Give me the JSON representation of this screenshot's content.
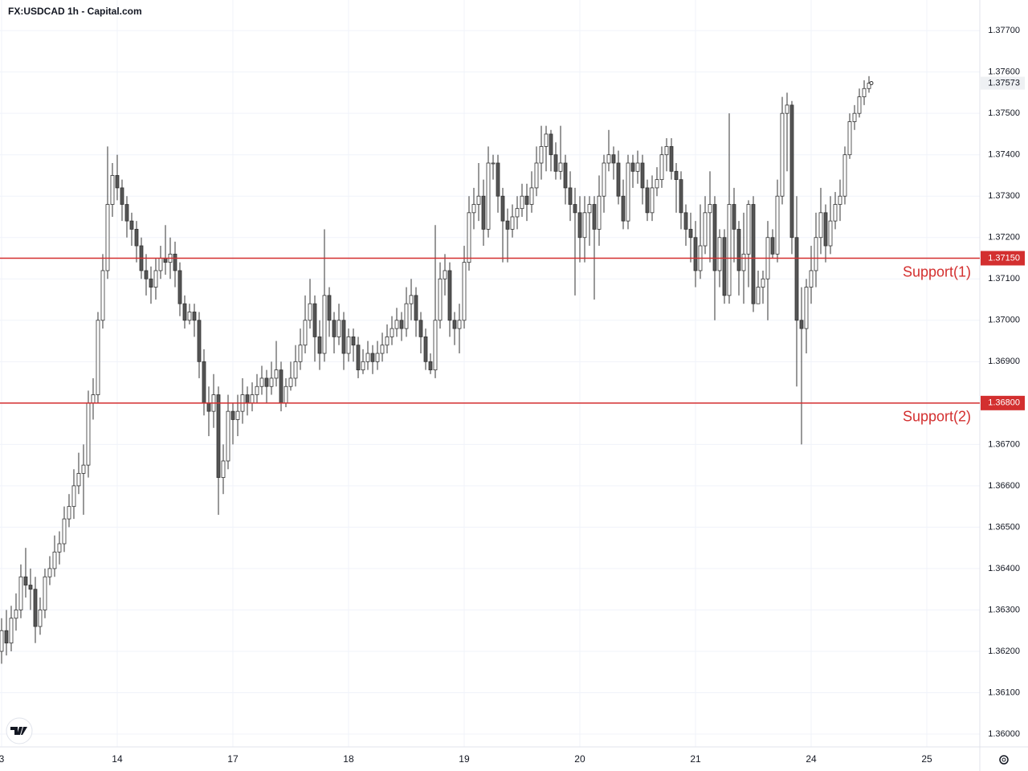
{
  "chart_data": {
    "type": "candlestick",
    "title": "FX:USDCAD 1h - Capital.com",
    "ohlc": [
      [
        1.362,
        1.3628,
        1.3617,
        1.3625
      ],
      [
        1.3625,
        1.363,
        1.3619,
        1.3622
      ],
      [
        1.3622,
        1.3631,
        1.362,
        1.3628
      ],
      [
        1.3628,
        1.3634,
        1.3625,
        1.363
      ],
      [
        1.363,
        1.3641,
        1.3628,
        1.3638
      ],
      [
        1.3638,
        1.3645,
        1.3633,
        1.3636
      ],
      [
        1.3636,
        1.364,
        1.363,
        1.3635
      ],
      [
        1.3635,
        1.3638,
        1.3622,
        1.3626
      ],
      [
        1.3626,
        1.3633,
        1.3624,
        1.363
      ],
      [
        1.363,
        1.364,
        1.3628,
        1.3638
      ],
      [
        1.3638,
        1.3643,
        1.3636,
        1.364
      ],
      [
        1.364,
        1.3648,
        1.3638,
        1.3644
      ],
      [
        1.3644,
        1.3649,
        1.3641,
        1.3646
      ],
      [
        1.3646,
        1.3655,
        1.3644,
        1.3652
      ],
      [
        1.3652,
        1.3658,
        1.365,
        1.3655
      ],
      [
        1.3655,
        1.3664,
        1.3652,
        1.366
      ],
      [
        1.366,
        1.3668,
        1.3658,
        1.3663
      ],
      [
        1.3663,
        1.367,
        1.3653,
        1.3665
      ],
      [
        1.3665,
        1.3683,
        1.3662,
        1.368
      ],
      [
        1.368,
        1.3686,
        1.3676,
        1.3682
      ],
      [
        1.3682,
        1.3702,
        1.368,
        1.37
      ],
      [
        1.37,
        1.3716,
        1.3698,
        1.3712
      ],
      [
        1.3712,
        1.3742,
        1.371,
        1.3728
      ],
      [
        1.3728,
        1.3738,
        1.3725,
        1.3735
      ],
      [
        1.3735,
        1.374,
        1.3729,
        1.3732
      ],
      [
        1.3732,
        1.3734,
        1.3724,
        1.3728
      ],
      [
        1.3728,
        1.373,
        1.372,
        1.3724
      ],
      [
        1.3724,
        1.3726,
        1.3718,
        1.3722
      ],
      [
        1.3722,
        1.3724,
        1.3714,
        1.3718
      ],
      [
        1.3718,
        1.372,
        1.371,
        1.3712
      ],
      [
        1.3712,
        1.3716,
        1.3706,
        1.371
      ],
      [
        1.371,
        1.3713,
        1.3704,
        1.3708
      ],
      [
        1.3708,
        1.3715,
        1.3705,
        1.3712
      ],
      [
        1.3712,
        1.3718,
        1.371,
        1.3715
      ],
      [
        1.3715,
        1.3723,
        1.3711,
        1.3714
      ],
      [
        1.3714,
        1.372,
        1.371,
        1.3716
      ],
      [
        1.3716,
        1.3719,
        1.3708,
        1.3712
      ],
      [
        1.3712,
        1.3714,
        1.3701,
        1.3704
      ],
      [
        1.3704,
        1.3706,
        1.3698,
        1.37
      ],
      [
        1.37,
        1.3704,
        1.3699,
        1.3702
      ],
      [
        1.3702,
        1.3704,
        1.3696,
        1.37
      ],
      [
        1.37,
        1.3702,
        1.3686,
        1.369
      ],
      [
        1.369,
        1.3693,
        1.3677,
        1.368
      ],
      [
        1.368,
        1.3684,
        1.3672,
        1.3678
      ],
      [
        1.3678,
        1.3687,
        1.3674,
        1.3682
      ],
      [
        1.3682,
        1.3684,
        1.3653,
        1.3662
      ],
      [
        1.3662,
        1.367,
        1.3658,
        1.3666
      ],
      [
        1.3666,
        1.3682,
        1.3664,
        1.3678
      ],
      [
        1.3678,
        1.368,
        1.367,
        1.3676
      ],
      [
        1.3676,
        1.3682,
        1.3672,
        1.3678
      ],
      [
        1.3678,
        1.3686,
        1.3675,
        1.3682
      ],
      [
        1.3682,
        1.3684,
        1.3677,
        1.368
      ],
      [
        1.368,
        1.3685,
        1.3678,
        1.3682
      ],
      [
        1.3682,
        1.3687,
        1.368,
        1.3684
      ],
      [
        1.3684,
        1.3689,
        1.3682,
        1.3686
      ],
      [
        1.3686,
        1.3688,
        1.368,
        1.3684
      ],
      [
        1.3684,
        1.369,
        1.3682,
        1.3686
      ],
      [
        1.3686,
        1.3695,
        1.3684,
        1.3688
      ],
      [
        1.3688,
        1.369,
        1.3678,
        1.368
      ],
      [
        1.368,
        1.3686,
        1.3679,
        1.3684
      ],
      [
        1.3684,
        1.369,
        1.3683,
        1.3686
      ],
      [
        1.3686,
        1.3694,
        1.3684,
        1.369
      ],
      [
        1.369,
        1.3698,
        1.3688,
        1.3694
      ],
      [
        1.3694,
        1.3706,
        1.3692,
        1.37
      ],
      [
        1.37,
        1.371,
        1.3698,
        1.3704
      ],
      [
        1.3704,
        1.3706,
        1.369,
        1.3696
      ],
      [
        1.3696,
        1.37,
        1.3688,
        1.3692
      ],
      [
        1.3692,
        1.3722,
        1.369,
        1.3706
      ],
      [
        1.3706,
        1.3708,
        1.3696,
        1.37
      ],
      [
        1.37,
        1.3702,
        1.3692,
        1.3696
      ],
      [
        1.3696,
        1.3704,
        1.3694,
        1.37
      ],
      [
        1.37,
        1.3702,
        1.3688,
        1.3692
      ],
      [
        1.3692,
        1.3698,
        1.369,
        1.3696
      ],
      [
        1.3696,
        1.3698,
        1.369,
        1.3694
      ],
      [
        1.3694,
        1.3696,
        1.3686,
        1.3688
      ],
      [
        1.3688,
        1.3693,
        1.3687,
        1.369
      ],
      [
        1.369,
        1.3695,
        1.3688,
        1.3692
      ],
      [
        1.3692,
        1.3694,
        1.3687,
        1.369
      ],
      [
        1.369,
        1.3695,
        1.3688,
        1.3692
      ],
      [
        1.3692,
        1.3697,
        1.369,
        1.3694
      ],
      [
        1.3694,
        1.3699,
        1.3692,
        1.3696
      ],
      [
        1.3696,
        1.3701,
        1.3694,
        1.3698
      ],
      [
        1.3698,
        1.3703,
        1.3696,
        1.37
      ],
      [
        1.37,
        1.3702,
        1.3695,
        1.3698
      ],
      [
        1.3698,
        1.3708,
        1.3696,
        1.3704
      ],
      [
        1.3704,
        1.371,
        1.37,
        1.3706
      ],
      [
        1.3706,
        1.3708,
        1.3696,
        1.37
      ],
      [
        1.37,
        1.3702,
        1.3692,
        1.3696
      ],
      [
        1.3696,
        1.3698,
        1.3688,
        1.369
      ],
      [
        1.369,
        1.3692,
        1.3687,
        1.3688
      ],
      [
        1.3688,
        1.3723,
        1.3686,
        1.37
      ],
      [
        1.37,
        1.3714,
        1.3698,
        1.371
      ],
      [
        1.371,
        1.3716,
        1.3706,
        1.3712
      ],
      [
        1.3712,
        1.3714,
        1.3696,
        1.37
      ],
      [
        1.37,
        1.3702,
        1.3694,
        1.3698
      ],
      [
        1.3698,
        1.3704,
        1.3692,
        1.37
      ],
      [
        1.37,
        1.3718,
        1.3698,
        1.3714
      ],
      [
        1.3714,
        1.373,
        1.3712,
        1.3726
      ],
      [
        1.3726,
        1.3732,
        1.3722,
        1.3728
      ],
      [
        1.3728,
        1.3738,
        1.3724,
        1.373
      ],
      [
        1.373,
        1.3734,
        1.3718,
        1.3722
      ],
      [
        1.3722,
        1.3742,
        1.372,
        1.3738
      ],
      [
        1.3738,
        1.374,
        1.3734,
        1.3738
      ],
      [
        1.3738,
        1.374,
        1.3726,
        1.373
      ],
      [
        1.373,
        1.3732,
        1.3714,
        1.3724
      ],
      [
        1.3724,
        1.3727,
        1.3714,
        1.3722
      ],
      [
        1.3722,
        1.3728,
        1.372,
        1.3725
      ],
      [
        1.3725,
        1.373,
        1.3722,
        1.3727
      ],
      [
        1.3727,
        1.3733,
        1.3725,
        1.373
      ],
      [
        1.373,
        1.3733,
        1.3724,
        1.3728
      ],
      [
        1.3728,
        1.3736,
        1.3726,
        1.3732
      ],
      [
        1.3732,
        1.3742,
        1.373,
        1.3738
      ],
      [
        1.3738,
        1.3747,
        1.3734,
        1.3742
      ],
      [
        1.3742,
        1.3747,
        1.3736,
        1.3745
      ],
      [
        1.3745,
        1.3746,
        1.3736,
        1.374
      ],
      [
        1.374,
        1.3743,
        1.3734,
        1.3736
      ],
      [
        1.3736,
        1.3747,
        1.3734,
        1.3738
      ],
      [
        1.3738,
        1.374,
        1.3728,
        1.3732
      ],
      [
        1.3732,
        1.3736,
        1.3724,
        1.3728
      ],
      [
        1.3728,
        1.3732,
        1.3706,
        1.3726
      ],
      [
        1.3726,
        1.373,
        1.3714,
        1.372
      ],
      [
        1.372,
        1.373,
        1.3714,
        1.3726
      ],
      [
        1.3726,
        1.373,
        1.3718,
        1.3728
      ],
      [
        1.3728,
        1.373,
        1.3705,
        1.3722
      ],
      [
        1.3722,
        1.3735,
        1.3718,
        1.373
      ],
      [
        1.373,
        1.374,
        1.3726,
        1.3738
      ],
      [
        1.3738,
        1.3746,
        1.3736,
        1.374
      ],
      [
        1.374,
        1.3742,
        1.3734,
        1.3738
      ],
      [
        1.3738,
        1.3741,
        1.3728,
        1.373
      ],
      [
        1.373,
        1.3734,
        1.3722,
        1.3724
      ],
      [
        1.3724,
        1.374,
        1.3722,
        1.3738
      ],
      [
        1.3738,
        1.374,
        1.3732,
        1.3736
      ],
      [
        1.3736,
        1.3741,
        1.3733,
        1.3738
      ],
      [
        1.3738,
        1.374,
        1.3728,
        1.3732
      ],
      [
        1.3732,
        1.3734,
        1.3724,
        1.3726
      ],
      [
        1.3726,
        1.3735,
        1.3724,
        1.3732
      ],
      [
        1.3732,
        1.3737,
        1.373,
        1.3734
      ],
      [
        1.3734,
        1.3742,
        1.3732,
        1.374
      ],
      [
        1.374,
        1.3744,
        1.3736,
        1.3742
      ],
      [
        1.3742,
        1.3744,
        1.3734,
        1.3736
      ],
      [
        1.3736,
        1.3738,
        1.3726,
        1.3734
      ],
      [
        1.3734,
        1.3736,
        1.3722,
        1.3726
      ],
      [
        1.3726,
        1.3728,
        1.3718,
        1.3722
      ],
      [
        1.3722,
        1.3726,
        1.3714,
        1.372
      ],
      [
        1.372,
        1.3724,
        1.3708,
        1.3712
      ],
      [
        1.3712,
        1.3728,
        1.371,
        1.3718
      ],
      [
        1.3718,
        1.373,
        1.3716,
        1.3726
      ],
      [
        1.3726,
        1.3736,
        1.3714,
        1.3728
      ],
      [
        1.3728,
        1.373,
        1.37,
        1.3712
      ],
      [
        1.3712,
        1.3722,
        1.3708,
        1.372
      ],
      [
        1.372,
        1.3722,
        1.3704,
        1.3706
      ],
      [
        1.3706,
        1.375,
        1.3704,
        1.3728
      ],
      [
        1.3728,
        1.3732,
        1.3714,
        1.3722
      ],
      [
        1.3722,
        1.3724,
        1.3706,
        1.3712
      ],
      [
        1.3712,
        1.3726,
        1.3704,
        1.3716
      ],
      [
        1.3716,
        1.3729,
        1.3708,
        1.3728
      ],
      [
        1.3728,
        1.373,
        1.3702,
        1.3704
      ],
      [
        1.3704,
        1.3712,
        1.3704,
        1.3708
      ],
      [
        1.3708,
        1.3712,
        1.3704,
        1.371
      ],
      [
        1.371,
        1.3724,
        1.37,
        1.372
      ],
      [
        1.372,
        1.3722,
        1.3715,
        1.3716
      ],
      [
        1.3716,
        1.3734,
        1.3714,
        1.373
      ],
      [
        1.373,
        1.3754,
        1.3728,
        1.375
      ],
      [
        1.375,
        1.3755,
        1.3736,
        1.3752
      ],
      [
        1.3752,
        1.3753,
        1.3716,
        1.372
      ],
      [
        1.372,
        1.373,
        1.3684,
        1.37
      ],
      [
        1.37,
        1.3708,
        1.367,
        1.3698
      ],
      [
        1.3698,
        1.371,
        1.3692,
        1.3708
      ],
      [
        1.3708,
        1.3718,
        1.3704,
        1.3712
      ],
      [
        1.3712,
        1.3726,
        1.3708,
        1.372
      ],
      [
        1.372,
        1.3732,
        1.3716,
        1.3726
      ],
      [
        1.3726,
        1.3728,
        1.3714,
        1.3718
      ],
      [
        1.3718,
        1.373,
        1.3716,
        1.3724
      ],
      [
        1.3724,
        1.3731,
        1.3722,
        1.3728
      ],
      [
        1.3728,
        1.3734,
        1.3724,
        1.373
      ],
      [
        1.373,
        1.3742,
        1.3728,
        1.374
      ],
      [
        1.374,
        1.375,
        1.3739,
        1.3748
      ],
      [
        1.3748,
        1.3752,
        1.3746,
        1.375
      ],
      [
        1.375,
        1.3756,
        1.3749,
        1.3754
      ],
      [
        1.3754,
        1.3758,
        1.3752,
        1.3756
      ],
      [
        1.3756,
        1.3759,
        1.3755,
        1.37573
      ]
    ],
    "last_price": 1.37573,
    "levels": [
      {
        "name": "Support(1)",
        "value": 1.3715,
        "label": "1.37150",
        "color": "#d32f2f"
      },
      {
        "name": "Support(2)",
        "value": 1.368,
        "label": "1.36800",
        "color": "#d32f2f"
      }
    ],
    "xlim": [
      -0.33,
      203
    ],
    "xticks": [
      {
        "value": 0,
        "label": "3"
      },
      {
        "value": 24,
        "label": "14"
      },
      {
        "value": 48,
        "label": "17"
      },
      {
        "value": 72,
        "label": "18"
      },
      {
        "value": 96,
        "label": "19"
      },
      {
        "value": 120,
        "label": "20"
      },
      {
        "value": 144,
        "label": "21"
      },
      {
        "value": 168,
        "label": "24"
      },
      {
        "value": 192,
        "label": "25"
      }
    ],
    "ylim": [
      1.35969,
      1.37774
    ],
    "yticks": [
      {
        "value": 1.36,
        "label": "1.36000"
      },
      {
        "value": 1.361,
        "label": "1.36100"
      },
      {
        "value": 1.362,
        "label": "1.36200"
      },
      {
        "value": 1.363,
        "label": "1.36300"
      },
      {
        "value": 1.364,
        "label": "1.36400"
      },
      {
        "value": 1.365,
        "label": "1.36500"
      },
      {
        "value": 1.366,
        "label": "1.36600"
      },
      {
        "value": 1.367,
        "label": "1.36700"
      },
      {
        "value": 1.368,
        "label": "1.36800"
      },
      {
        "value": 1.369,
        "label": "1.36900"
      },
      {
        "value": 1.37,
        "label": "1.37000"
      },
      {
        "value": 1.371,
        "label": "1.37100"
      },
      {
        "value": 1.372,
        "label": "1.37200"
      },
      {
        "value": 1.373,
        "label": "1.37300"
      },
      {
        "value": 1.374,
        "label": "1.37400"
      },
      {
        "value": 1.375,
        "label": "1.37500"
      },
      {
        "value": 1.376,
        "label": "1.37600"
      },
      {
        "value": 1.377,
        "label": "1.37700"
      }
    ],
    "grid": true,
    "up_color": "#ffffff",
    "down_color": "#555555"
  }
}
